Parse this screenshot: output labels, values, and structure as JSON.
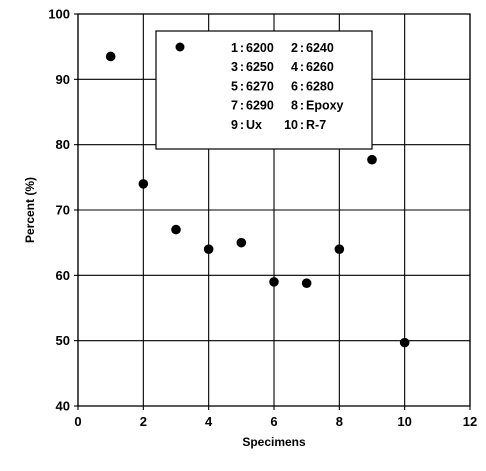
{
  "chart_data": {
    "type": "scatter",
    "title": "",
    "xlabel": "Specimens",
    "ylabel": "Percent (%)",
    "xlim": [
      0,
      12
    ],
    "ylim": [
      40,
      100
    ],
    "xticks": [
      0,
      2,
      4,
      6,
      8,
      10,
      12
    ],
    "yticks": [
      40,
      50,
      60,
      70,
      80,
      90,
      100
    ],
    "grid": true,
    "legend_placement": "top-center",
    "series": [
      {
        "marker": "filled-circle",
        "color": "#000000",
        "points": [
          {
            "x": 1,
            "y": 93.5
          },
          {
            "x": 2,
            "y": 74
          },
          {
            "x": 3,
            "y": 67
          },
          {
            "x": 4,
            "y": 64
          },
          {
            "x": 5,
            "y": 65
          },
          {
            "x": 6,
            "y": 59
          },
          {
            "x": 7,
            "y": 58.8
          },
          {
            "x": 8,
            "y": 64
          },
          {
            "x": 9,
            "y": 77.7
          },
          {
            "x": 10,
            "y": 49.7
          }
        ]
      }
    ],
    "legend_entries": [
      [
        "1 : 6200",
        "2 : 6240"
      ],
      [
        "3 : 6250",
        "4 : 6260"
      ],
      [
        "5 : 6270",
        "6 : 6280"
      ],
      [
        "7 : 6290",
        "8 : Epoxy"
      ],
      [
        "9 : Ux",
        "10 : R-7"
      ]
    ]
  }
}
